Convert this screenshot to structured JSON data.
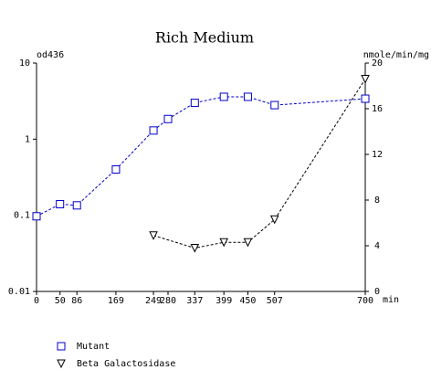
{
  "chart_data": {
    "type": "line",
    "title": "Rich Medium",
    "y_label": "od436",
    "y2_label": "nmole/min/mg",
    "x_label": "min",
    "xlim": [
      0,
      700
    ],
    "xticks": [
      0,
      50,
      86,
      169,
      249,
      280,
      337,
      399,
      450,
      507,
      700
    ],
    "ylim": [
      0.01,
      10
    ],
    "yticks": [
      10,
      1,
      0.1,
      0.01
    ],
    "y_scale": "log",
    "y2lim": [
      0,
      20
    ],
    "y2ticks": [
      20,
      16,
      12,
      8,
      4,
      0
    ],
    "series": [
      {
        "name": "Mutant",
        "color": "#0000cc",
        "marker": "square",
        "x": [
          0,
          50,
          86,
          169,
          249,
          280,
          337,
          399,
          450,
          507,
          700
        ],
        "values": [
          0.097,
          0.14,
          0.135,
          0.4,
          1.3,
          1.84,
          3.0,
          3.6,
          3.6,
          2.8,
          3.4
        ]
      },
      {
        "name": "Beta Galactosidase",
        "color": "#000000",
        "marker": "triangle-down",
        "axis": "y2",
        "x": [
          249,
          337,
          399,
          450,
          507,
          700
        ],
        "values": [
          4.9,
          3.8,
          4.3,
          4.3,
          6.3,
          18.6
        ]
      }
    ]
  }
}
